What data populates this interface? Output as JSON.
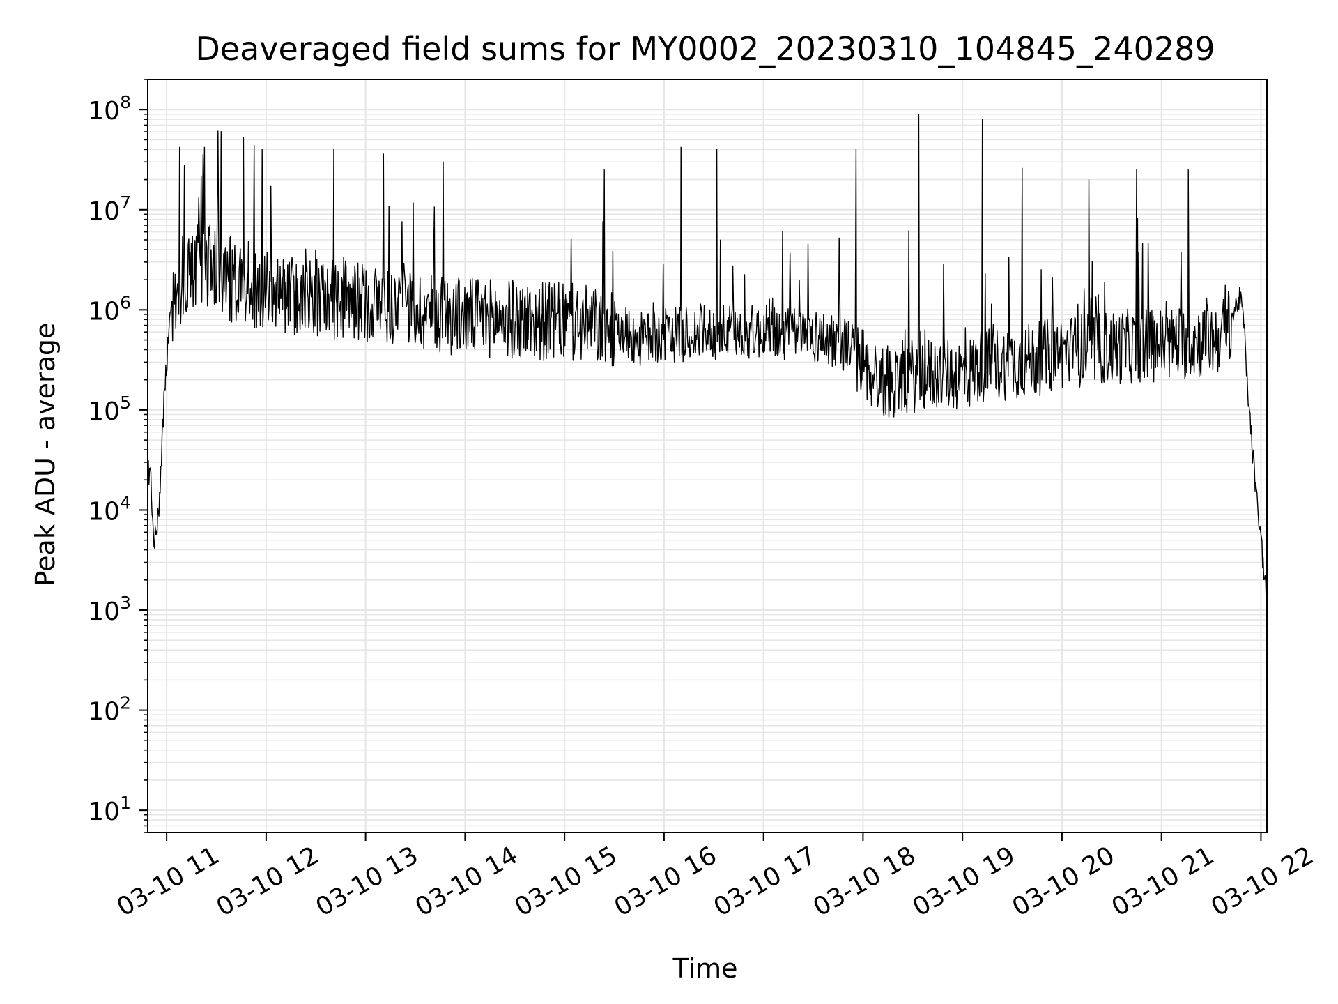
{
  "chart_data": {
    "type": "line",
    "title": "Deaveraged field sums for MY0002_20230310_104845_240289",
    "xlabel": "Time",
    "ylabel": "Peak ADU - average",
    "x_type": "time",
    "x_unit": "hour of 2023-03-10",
    "xlim": [
      10.81,
      22.06
    ],
    "ylim": [
      6,
      200000000
    ],
    "y_scale": "log",
    "grid": true,
    "legend": "none",
    "x_ticks": [
      {
        "value": 11,
        "label": "03-10 11"
      },
      {
        "value": 12,
        "label": "03-10 12"
      },
      {
        "value": 13,
        "label": "03-10 13"
      },
      {
        "value": 14,
        "label": "03-10 14"
      },
      {
        "value": 15,
        "label": "03-10 15"
      },
      {
        "value": 16,
        "label": "03-10 16"
      },
      {
        "value": 17,
        "label": "03-10 17"
      },
      {
        "value": 18,
        "label": "03-10 18"
      },
      {
        "value": 19,
        "label": "03-10 19"
      },
      {
        "value": 20,
        "label": "03-10 20"
      },
      {
        "value": 21,
        "label": "03-10 21"
      },
      {
        "value": 22,
        "label": "03-10 22"
      }
    ],
    "y_ticks": [
      {
        "value": 10,
        "base": "10",
        "exp": "1"
      },
      {
        "value": 100,
        "base": "10",
        "exp": "2"
      },
      {
        "value": 1000,
        "base": "10",
        "exp": "3"
      },
      {
        "value": 10000,
        "base": "10",
        "exp": "4"
      },
      {
        "value": 100000,
        "base": "10",
        "exp": "5"
      },
      {
        "value": 1000000,
        "base": "10",
        "exp": "6"
      },
      {
        "value": 10000000,
        "base": "10",
        "exp": "7"
      },
      {
        "value": 100000000,
        "base": "10",
        "exp": "8"
      }
    ],
    "series": [
      {
        "color": "#000000",
        "x": [
          10.81,
          10.83,
          10.86,
          10.88,
          10.9,
          10.93,
          10.96,
          11.0,
          11.03,
          11.05,
          11.08,
          11.12,
          11.2,
          11.3,
          11.5,
          11.7,
          12.0,
          12.5,
          13.0,
          13.5,
          14.0,
          14.5,
          15.0,
          15.5,
          15.75,
          16.0,
          16.5,
          17.0,
          17.5,
          17.85,
          18.05,
          18.2,
          18.5,
          18.8,
          19.05,
          19.2,
          19.5,
          19.75,
          20.0,
          20.5,
          21.0,
          21.3,
          21.5,
          21.65,
          21.72,
          21.78,
          21.82,
          21.86,
          21.9,
          21.95,
          22.0,
          22.04,
          22.06
        ],
        "y": [
          22000,
          20000,
          12000,
          4500,
          5500,
          15000,
          70000,
          300000,
          900000,
          1300000,
          1500000,
          1800000,
          2500000,
          3000000,
          2800000,
          1800000,
          1500000,
          1300000,
          1200000,
          1000000,
          850000,
          800000,
          750000,
          650000,
          500000,
          550000,
          600000,
          600000,
          550000,
          450000,
          250000,
          190000,
          220000,
          230000,
          230000,
          280000,
          300000,
          320000,
          380000,
          420000,
          450000,
          480000,
          500000,
          600000,
          900000,
          1300000,
          1000000,
          200000,
          60000,
          15000,
          5000,
          2000,
          1000
        ],
        "spikes": [
          {
            "x": 11.13,
            "y": 42000000
          },
          {
            "x": 11.38,
            "y": 42000000
          },
          {
            "x": 11.88,
            "y": 44000000
          },
          {
            "x": 11.96,
            "y": 40000000
          },
          {
            "x": 12.68,
            "y": 40000000
          },
          {
            "x": 13.18,
            "y": 36000000
          },
          {
            "x": 13.78,
            "y": 30000000
          },
          {
            "x": 15.4,
            "y": 25000000
          },
          {
            "x": 16.17,
            "y": 42000000
          },
          {
            "x": 16.53,
            "y": 40000000
          },
          {
            "x": 17.93,
            "y": 40000000
          },
          {
            "x": 18.56,
            "y": 90000000
          },
          {
            "x": 19.2,
            "y": 80000000
          },
          {
            "x": 19.6,
            "y": 26000000
          },
          {
            "x": 20.27,
            "y": 20000000
          },
          {
            "x": 20.75,
            "y": 25000000
          },
          {
            "x": 21.27,
            "y": 25000000
          }
        ]
      }
    ]
  }
}
